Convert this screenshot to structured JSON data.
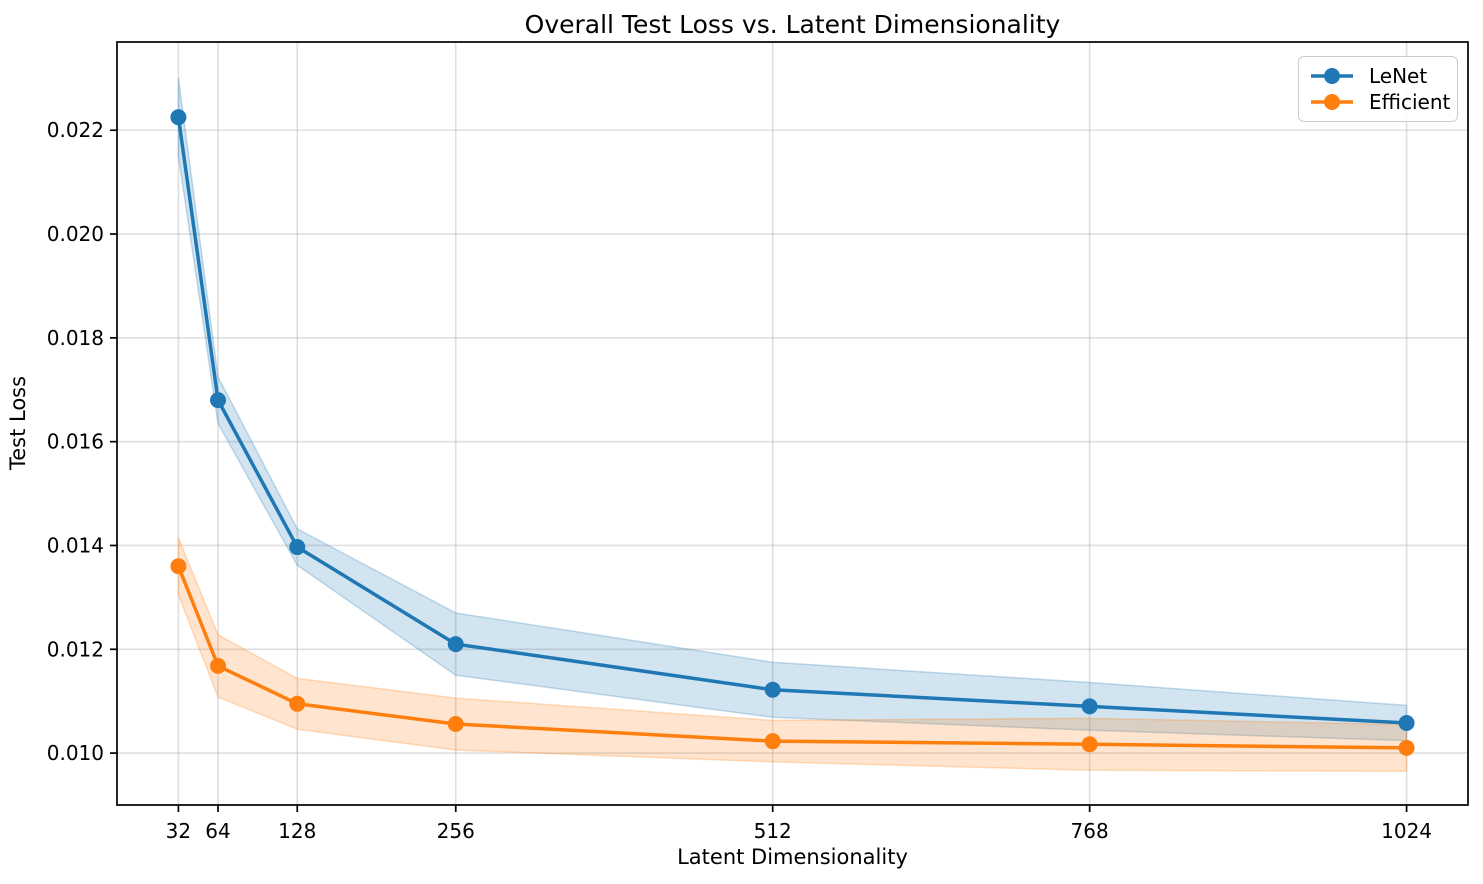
{
  "chart_data": {
    "type": "line",
    "title": "Overall Test Loss vs. Latent Dimensionality",
    "xlabel": "Latent Dimensionality",
    "ylabel": "Test Loss",
    "x": [
      32,
      64,
      128,
      256,
      512,
      768,
      1024
    ],
    "x_tick_labels": [
      "32",
      "64",
      "128",
      "256",
      "512",
      "768",
      "1024"
    ],
    "y_ticks": [
      0.01,
      0.012,
      0.014,
      0.016,
      0.018,
      0.02,
      0.022
    ],
    "y_tick_labels": [
      "0.010",
      "0.012",
      "0.014",
      "0.016",
      "0.018",
      "0.020",
      "0.022"
    ],
    "xlim": [
      -17.6,
      1073.6
    ],
    "ylim": [
      0.009,
      0.0237
    ],
    "grid": true,
    "grid_color": "#b0b0b0",
    "spine_color": "#000000",
    "legend_position": "upper right",
    "band_alpha": 0.2,
    "series": [
      {
        "name": "LeNet",
        "color": "#1f77b4",
        "values": [
          0.02225,
          0.0168,
          0.01397,
          0.0121,
          0.01122,
          0.0109,
          0.01058
        ],
        "band_upper": [
          0.023,
          0.01725,
          0.01432,
          0.0127,
          0.01175,
          0.01136,
          0.01092
        ],
        "band_lower": [
          0.0215,
          0.01635,
          0.01362,
          0.0115,
          0.01069,
          0.01044,
          0.01024
        ]
      },
      {
        "name": "Efficient",
        "color": "#ff7f0e",
        "values": [
          0.0136,
          0.01168,
          0.01095,
          0.01056,
          0.01023,
          0.01017,
          0.0101
        ],
        "band_upper": [
          0.01415,
          0.01228,
          0.01144,
          0.01106,
          0.01063,
          0.01067,
          0.01055
        ],
        "band_lower": [
          0.01305,
          0.01108,
          0.01046,
          0.01006,
          0.00983,
          0.00967,
          0.00965
        ]
      }
    ]
  }
}
